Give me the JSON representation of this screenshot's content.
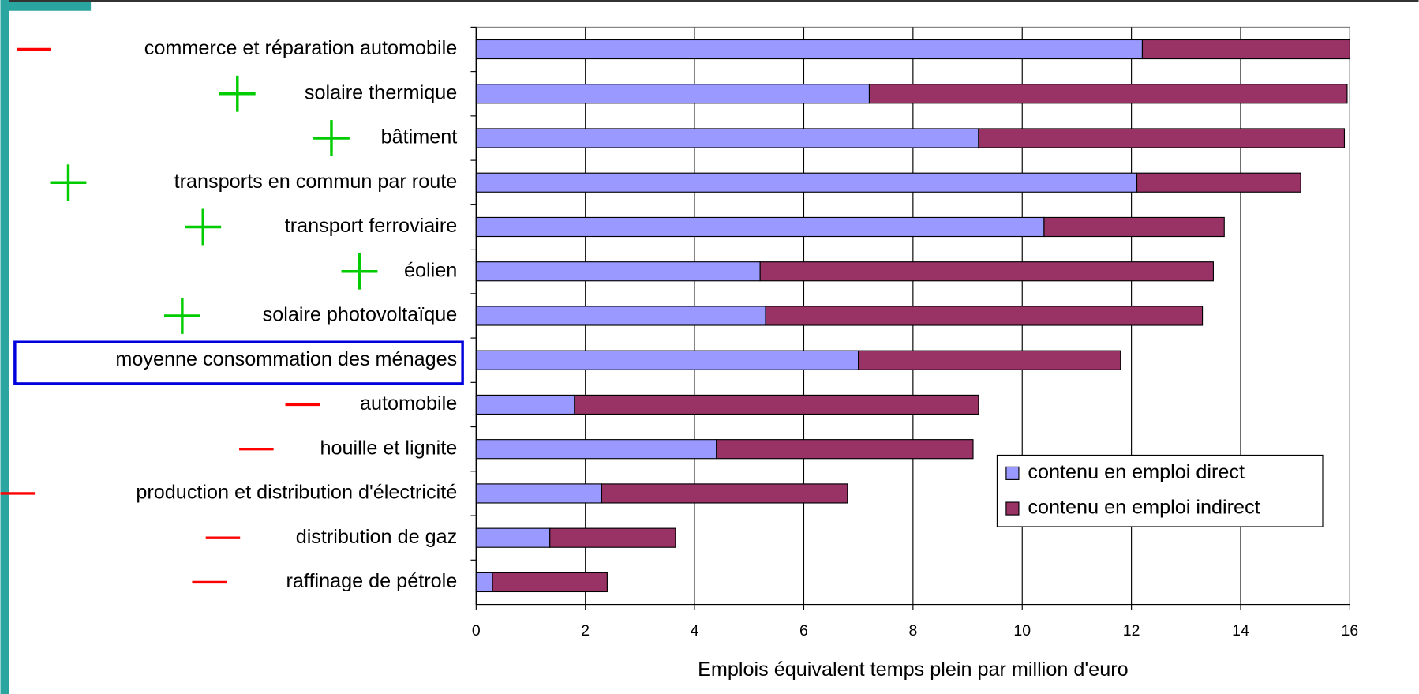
{
  "chart_data": {
    "type": "stacked-barh",
    "categories": [
      "commerce et réparation automobile",
      "solaire thermique",
      "bâtiment",
      "transports en commun par route",
      "transport ferroviaire",
      "éolien",
      "solaire photovoltaïque",
      "moyenne consommation des ménages",
      "automobile",
      "houille et lignite",
      "production et distribution d'électricité",
      "distribution de gaz",
      "raffinage de pétrole"
    ],
    "series": [
      {
        "name": "contenu en emploi direct",
        "color": "#9999ff",
        "values": [
          12.2,
          7.2,
          9.2,
          12.1,
          10.4,
          5.2,
          5.3,
          7.0,
          1.8,
          4.4,
          2.3,
          1.35,
          0.3
        ]
      },
      {
        "name": "contenu en emploi indirect",
        "color": "#993366",
        "values": [
          3.8,
          8.75,
          6.7,
          3.0,
          3.3,
          8.3,
          8.0,
          4.8,
          7.4,
          4.7,
          4.5,
          2.3,
          2.1
        ]
      }
    ],
    "xlim": [
      0,
      16
    ],
    "xticks": [
      0,
      2,
      4,
      6,
      8,
      10,
      12,
      14,
      16
    ],
    "xlabel": "Emplois équivalent temps plein par million d'euro",
    "grid": true,
    "legend": "lower right"
  }
}
